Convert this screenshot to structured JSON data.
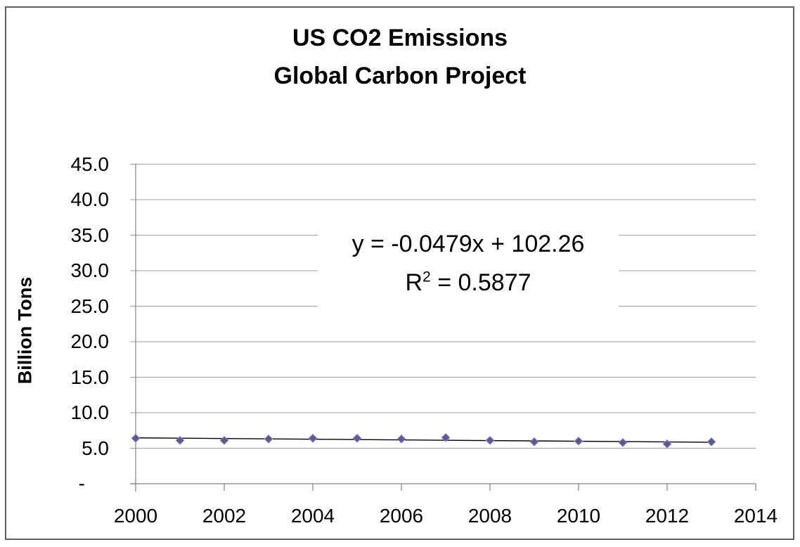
{
  "title": {
    "line1": "US CO2 Emissions",
    "line2": "Global Carbon Project"
  },
  "y_axis": {
    "title": "Billion Tons",
    "tick_labels": [
      "45.0",
      "40.0",
      "35.0",
      "30.0",
      "25.0",
      "20.0",
      "15.0",
      "10.0",
      "5.0",
      "-"
    ]
  },
  "x_axis": {
    "tick_labels": [
      "2000",
      "2002",
      "2004",
      "2006",
      "2008",
      "2010",
      "2012",
      "2014"
    ]
  },
  "annotation": {
    "equation": "y = -0.0479x + 102.26",
    "r2_base": "R",
    "r2_exp": "2",
    "r2_value": " = 0.5877"
  },
  "chart_data": {
    "type": "scatter",
    "title": "US CO2 Emissions — Global Carbon Project",
    "xlabel": "",
    "ylabel": "Billion Tons",
    "x": [
      2000,
      2001,
      2002,
      2003,
      2004,
      2005,
      2006,
      2007,
      2008,
      2009,
      2010,
      2011,
      2012,
      2013
    ],
    "series": [
      {
        "name": "US CO2 Emissions (Billion Tons)",
        "values": [
          6.4,
          6.1,
          6.1,
          6.3,
          6.4,
          6.4,
          6.3,
          6.5,
          6.1,
          5.9,
          6.0,
          5.8,
          5.6,
          5.9
        ]
      }
    ],
    "trendline": {
      "type": "linear",
      "slope": -0.0479,
      "intercept": 102.26,
      "r_squared": 0.5877,
      "equation_text": "y = -0.0479x + 102.26",
      "r2_text": "R² = 0.5877",
      "x_start": 2000,
      "x_end": 2013
    },
    "xlim": [
      2000,
      2014
    ],
    "ylim": [
      0,
      45
    ],
    "x_tick_step": 2,
    "y_tick_step": 5,
    "gridlines": "horizontal",
    "legend": "none",
    "zero_label_format": "accounting-dash",
    "marker": {
      "shape": "diamond",
      "color": "#5b599b",
      "edge_color": "#8886b8"
    },
    "colors": {
      "gridline": "#9c9c9c",
      "axis": "#808080",
      "trendline": "#000000",
      "text": "#000000",
      "frame_border": "#5f5f5f",
      "background": "#ffffff"
    }
  }
}
